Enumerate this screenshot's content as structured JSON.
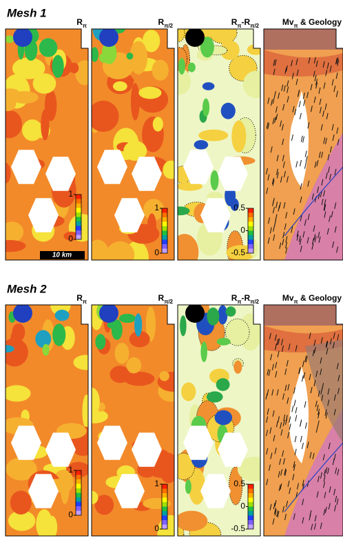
{
  "rows": [
    {
      "label": "Mesh 1",
      "panels": [
        {
          "title": [
            {
              "text": "R"
            },
            {
              "text": "π",
              "sub": true
            }
          ],
          "colorbar": {
            "lim": [
              0,
              1
            ],
            "ticks": [
              1,
              0
            ]
          }
        },
        {
          "title": [
            {
              "text": "R"
            },
            {
              "text": "π/2",
              "sub": true
            }
          ],
          "colorbar": {
            "lim": [
              0,
              1
            ],
            "ticks": [
              1,
              0
            ]
          }
        },
        {
          "title": [
            {
              "text": "R"
            },
            {
              "text": "π",
              "sub": true
            },
            {
              "text": "-R"
            },
            {
              "text": "π/2",
              "sub": true
            }
          ],
          "colorbar": {
            "lim": [
              -0.5,
              0.5
            ],
            "ticks": [
              0.5,
              0,
              -0.5
            ]
          }
        },
        {
          "title": [
            {
              "text": "Mv"
            },
            {
              "text": "π",
              "sub": true
            },
            {
              "text": " & Geology"
            }
          ]
        }
      ]
    },
    {
      "label": "Mesh 2",
      "panels": [
        {
          "title": [
            {
              "text": "R"
            },
            {
              "text": "π",
              "sub": true
            }
          ],
          "colorbar": {
            "lim": [
              0,
              1
            ],
            "ticks": [
              1,
              0
            ]
          }
        },
        {
          "title": [
            {
              "text": "R"
            },
            {
              "text": "π/2",
              "sub": true
            }
          ],
          "colorbar": {
            "lim": [
              0,
              1
            ],
            "ticks": [
              1,
              0
            ]
          }
        },
        {
          "title": [
            {
              "text": "R"
            },
            {
              "text": "π",
              "sub": true
            },
            {
              "text": "-R"
            },
            {
              "text": "π/2",
              "sub": true
            }
          ],
          "colorbar": {
            "lim": [
              -0.5,
              0.5
            ],
            "ticks": [
              0.5,
              0,
              -0.5
            ]
          }
        },
        {
          "title": [
            {
              "text": "Mv"
            },
            {
              "text": "π",
              "sub": true
            },
            {
              "text": " & Geology"
            }
          ]
        }
      ]
    }
  ],
  "scale_bar": "10 km"
}
